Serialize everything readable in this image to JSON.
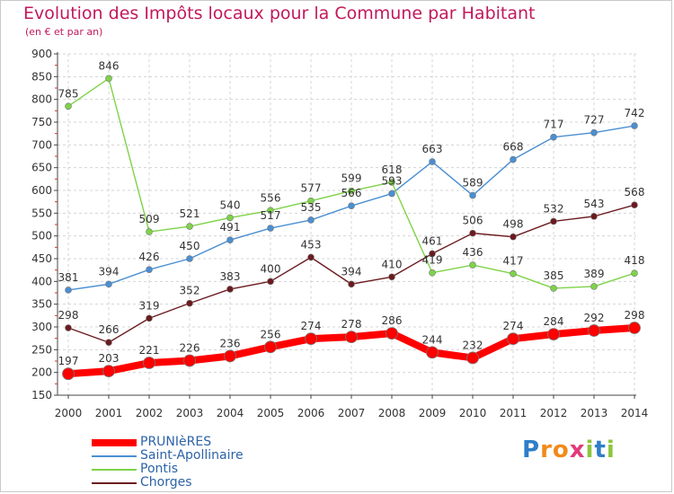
{
  "title": "Evolution des Impôts locaux pour la Commune par Habitant",
  "subtitle": "(en € et par an)",
  "brand": {
    "letters": [
      "P",
      "r",
      "o",
      "x",
      "i",
      "t",
      "i"
    ],
    "colors": [
      "#2f7ec8",
      "#f08a1a",
      "#f08a1a",
      "#e23a7a",
      "#8cc63f",
      "#2f7ec8",
      "#8cc63f"
    ]
  },
  "chart_data": {
    "type": "line",
    "title": "Evolution des Impôts locaux pour la Commune par Habitant",
    "subtitle": "(en € et par an)",
    "xlabel": "",
    "ylabel": "",
    "x": [
      2000,
      2001,
      2002,
      2003,
      2004,
      2005,
      2006,
      2007,
      2008,
      2009,
      2010,
      2011,
      2012,
      2013,
      2014
    ],
    "ylim": [
      150,
      900
    ],
    "yticks": [
      150,
      200,
      250,
      300,
      350,
      400,
      450,
      500,
      550,
      600,
      650,
      700,
      750,
      800,
      850,
      900
    ],
    "grid": true,
    "legend": "bottom-left",
    "series": [
      {
        "name": "PRUNIèRES",
        "color": "#ff0000",
        "bold": true,
        "values": [
          197,
          203,
          221,
          226,
          236,
          256,
          274,
          278,
          286,
          244,
          232,
          274,
          284,
          292,
          298
        ]
      },
      {
        "name": "Saint-Apollinaire",
        "color": "#4a8fd2",
        "bold": false,
        "values": [
          381,
          394,
          426,
          450,
          491,
          517,
          535,
          566,
          593,
          663,
          589,
          668,
          717,
          727,
          742
        ]
      },
      {
        "name": "Pontis",
        "color": "#7ed348",
        "bold": false,
        "values": [
          785,
          846,
          509,
          521,
          540,
          556,
          577,
          599,
          618,
          419,
          436,
          417,
          385,
          389,
          418
        ]
      },
      {
        "name": "Chorges",
        "color": "#6b1a1f",
        "bold": false,
        "values": [
          298,
          266,
          319,
          352,
          383,
          400,
          453,
          394,
          410,
          461,
          506,
          498,
          532,
          543,
          568
        ]
      }
    ]
  }
}
